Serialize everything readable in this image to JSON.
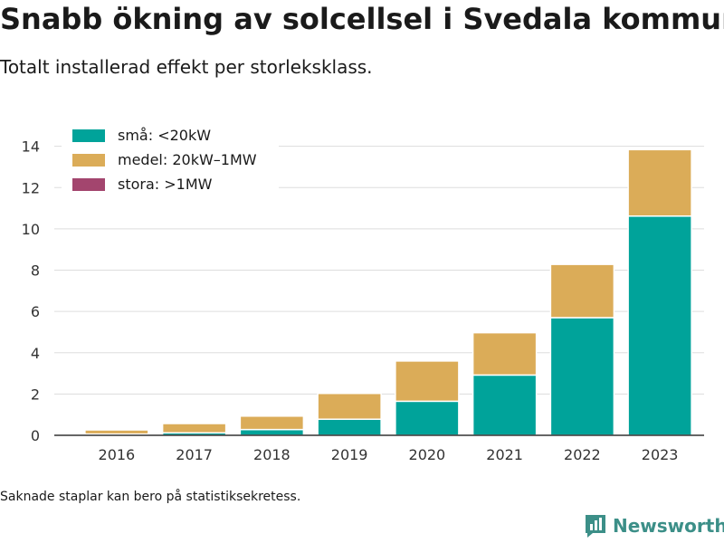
{
  "title": "Snabb ökning av solcellsel i Svedala kommun",
  "subtitle": "Totalt installerad effekt per storleksklass.",
  "footnote": "Saknade staplar kan bero på statistiksekretess.",
  "brand": {
    "name": "Newsworthy",
    "icon": "newsworthy-logo-icon",
    "color": "#3c8f88"
  },
  "chart_data": {
    "type": "bar",
    "stacked": true,
    "categories": [
      "2016",
      "2017",
      "2018",
      "2019",
      "2020",
      "2021",
      "2022",
      "2023"
    ],
    "series": [
      {
        "name": "små: <20kW",
        "color": "#00a39a",
        "values": [
          0.06,
          0.12,
          0.28,
          0.78,
          1.65,
          2.92,
          5.7,
          10.62
        ]
      },
      {
        "name": "medel: 20kW–1MW",
        "color": "#dbac58",
        "values": [
          0.2,
          0.45,
          0.65,
          1.25,
          1.95,
          2.05,
          2.58,
          3.22
        ]
      },
      {
        "name": "stora: >1MW",
        "color": "#a3456e",
        "values": [
          0,
          0,
          0,
          0,
          0,
          0,
          0,
          0
        ]
      }
    ],
    "yticks": [
      0,
      2,
      4,
      6,
      8,
      10,
      12,
      14
    ],
    "ylim": [
      0,
      14.6
    ],
    "xlabel": "",
    "ylabel": "",
    "grid": "horizontal",
    "legend": "top-left"
  }
}
